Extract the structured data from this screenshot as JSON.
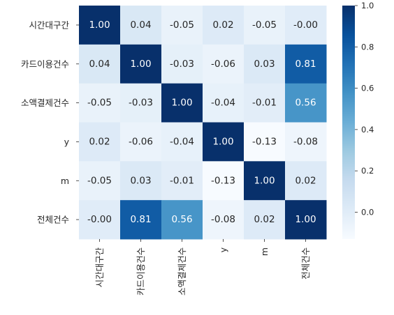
{
  "chart_data": {
    "type": "heatmap",
    "title": "",
    "xlabel": "",
    "ylabel": "",
    "row_labels": [
      "시간대구간",
      "카드이용건수",
      "소액결제건수",
      "y",
      "m",
      "전체건수"
    ],
    "col_labels": [
      "시간대구간",
      "카드이용건수",
      "소액결제건수",
      "y",
      "m",
      "전체건수"
    ],
    "values": [
      [
        1.0,
        0.04,
        -0.05,
        0.02,
        -0.05,
        -0.0
      ],
      [
        0.04,
        1.0,
        -0.03,
        -0.06,
        0.03,
        0.81
      ],
      [
        -0.05,
        -0.03,
        1.0,
        -0.04,
        -0.01,
        0.56
      ],
      [
        0.02,
        -0.06,
        -0.04,
        1.0,
        -0.13,
        -0.08
      ],
      [
        -0.05,
        0.03,
        -0.01,
        -0.13,
        1.0,
        0.02
      ],
      [
        -0.0,
        0.81,
        0.56,
        -0.08,
        0.02,
        1.0
      ]
    ],
    "annotations": [
      [
        "1.00",
        "0.04",
        "-0.05",
        "0.02",
        "-0.05",
        "-0.00"
      ],
      [
        "0.04",
        "1.00",
        "-0.03",
        "-0.06",
        "0.03",
        "0.81"
      ],
      [
        "-0.05",
        "-0.03",
        "1.00",
        "-0.04",
        "-0.01",
        "0.56"
      ],
      [
        "0.02",
        "-0.06",
        "-0.04",
        "1.00",
        "-0.13",
        "-0.08"
      ],
      [
        "-0.05",
        "0.03",
        "-0.01",
        "-0.13",
        "1.00",
        "0.02"
      ],
      [
        "-0.00",
        "0.81",
        "0.56",
        "-0.08",
        "0.02",
        "1.00"
      ]
    ],
    "colormap": "Blues",
    "colorbar": {
      "range": [
        -0.13,
        1.0
      ],
      "ticks": [
        0.0,
        0.2,
        0.4,
        0.6,
        0.8,
        1.0
      ],
      "tick_labels": [
        "0.0",
        "0.2",
        "0.4",
        "0.6",
        "0.8",
        "1.0"
      ]
    },
    "grid": false,
    "colors": {
      "blues_stops": [
        "#f7fbff",
        "#deebf7",
        "#c6dbef",
        "#9ecae1",
        "#6baed6",
        "#4292c6",
        "#2171b5",
        "#08519c",
        "#08306b"
      ],
      "text_dark": "#262626",
      "text_light": "#ffffff"
    }
  }
}
